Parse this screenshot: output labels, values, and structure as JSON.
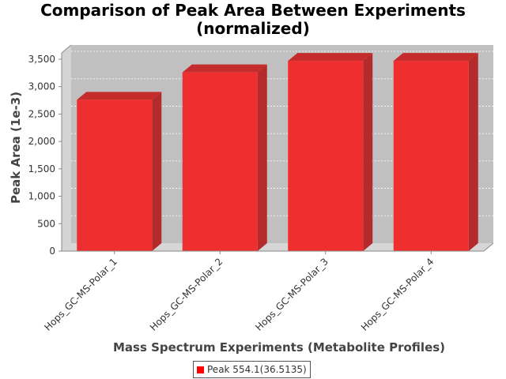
{
  "chart_data": {
    "type": "bar",
    "title_line1": "Comparison of Peak Area Between Experiments",
    "title_line2": "(normalized)",
    "xlabel": "Mass Spectrum Experiments (Metabolite Profiles)",
    "ylabel": "Peak Area (1e-3)",
    "categories": [
      "Hops_GC-MS-Polar_1",
      "Hops_GC-MS-Polar_2",
      "Hops_GC-MS-Polar_3",
      "Hops_GC-MS-Polar_4"
    ],
    "series": [
      {
        "name": "Peak 554.1(36.5135)",
        "values": [
          2760,
          3260,
          3470,
          3470
        ]
      }
    ],
    "ylim": [
      0,
      3500
    ],
    "yticks": [
      "0",
      "500",
      "1,000",
      "1,500",
      "2,000",
      "2,500",
      "3,000",
      "3,500"
    ],
    "ytick_values": [
      0,
      500,
      1000,
      1500,
      2000,
      2500,
      3000,
      3500
    ],
    "grid": true,
    "legend_position": "bottom",
    "colors": {
      "bar_front": "#ef2f2f",
      "bar_side": "#b52a2a",
      "bar_top": "#c52c2c",
      "plot_bg": "#c0c0c0",
      "wall_side": "#d4d4d4",
      "floor": "#d6d6d6"
    }
  }
}
